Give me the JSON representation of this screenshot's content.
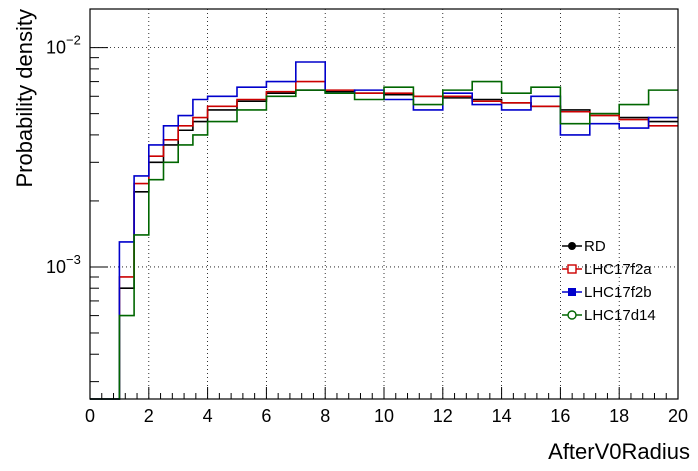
{
  "chart_data": {
    "type": "histogram",
    "xlabel": "AfterV0Radius",
    "ylabel": "Probability density",
    "xlim": [
      0,
      20
    ],
    "ylim": [
      0.00025,
      0.015
    ],
    "log_y": true,
    "grid": true,
    "legend_position": "right",
    "x_ticks": [
      "0",
      "2",
      "4",
      "6",
      "8",
      "10",
      "12",
      "14",
      "16",
      "18",
      "20"
    ],
    "y_ticks": [
      {
        "value": 0.01,
        "base": "10",
        "exp": "−2"
      },
      {
        "value": 0.001,
        "base": "10",
        "exp": "−3"
      }
    ],
    "bin_edges": [
      0,
      1,
      1.5,
      2,
      2.5,
      3,
      3.5,
      4,
      5,
      6,
      7,
      8,
      9,
      10,
      11,
      12,
      13,
      14,
      15,
      16,
      17,
      18,
      19,
      20
    ],
    "series": [
      {
        "name": "RD",
        "color": "#000000",
        "marker": "circle",
        "values": [
          0.00025,
          0.0008,
          0.0022,
          0.003,
          0.0036,
          0.0042,
          0.0046,
          0.0052,
          0.0057,
          0.0062,
          0.0064,
          0.0063,
          0.0062,
          0.0061,
          0.006,
          0.0059,
          0.0058,
          0.0056,
          0.0054,
          0.0052,
          0.005,
          0.0048,
          0.0046
        ]
      },
      {
        "name": "LHC17f2a",
        "color": "#cc0000",
        "marker": "open-square",
        "values": [
          0.00025,
          0.0009,
          0.0024,
          0.0032,
          0.0038,
          0.0044,
          0.0048,
          0.0054,
          0.0058,
          0.0063,
          0.007,
          0.0064,
          0.0062,
          0.0062,
          0.006,
          0.006,
          0.0057,
          0.0056,
          0.0054,
          0.0051,
          0.0049,
          0.0047,
          0.0044
        ]
      },
      {
        "name": "LHC17f2b",
        "color": "#0000cc",
        "marker": "square",
        "values": [
          0.00025,
          0.0013,
          0.0026,
          0.0036,
          0.0044,
          0.0049,
          0.0058,
          0.006,
          0.0066,
          0.007,
          0.0086,
          0.0062,
          0.0064,
          0.0058,
          0.0052,
          0.0062,
          0.0055,
          0.0052,
          0.006,
          0.004,
          0.0045,
          0.0043,
          0.0048
        ]
      },
      {
        "name": "LHC17d14",
        "color": "#006600",
        "marker": "open-circle",
        "values": [
          0.00025,
          0.0006,
          0.0014,
          0.0025,
          0.003,
          0.0036,
          0.004,
          0.0046,
          0.0052,
          0.006,
          0.0064,
          0.0062,
          0.0058,
          0.0066,
          0.0055,
          0.0064,
          0.007,
          0.0062,
          0.0066,
          0.0045,
          0.005,
          0.0055,
          0.0064
        ]
      }
    ]
  }
}
